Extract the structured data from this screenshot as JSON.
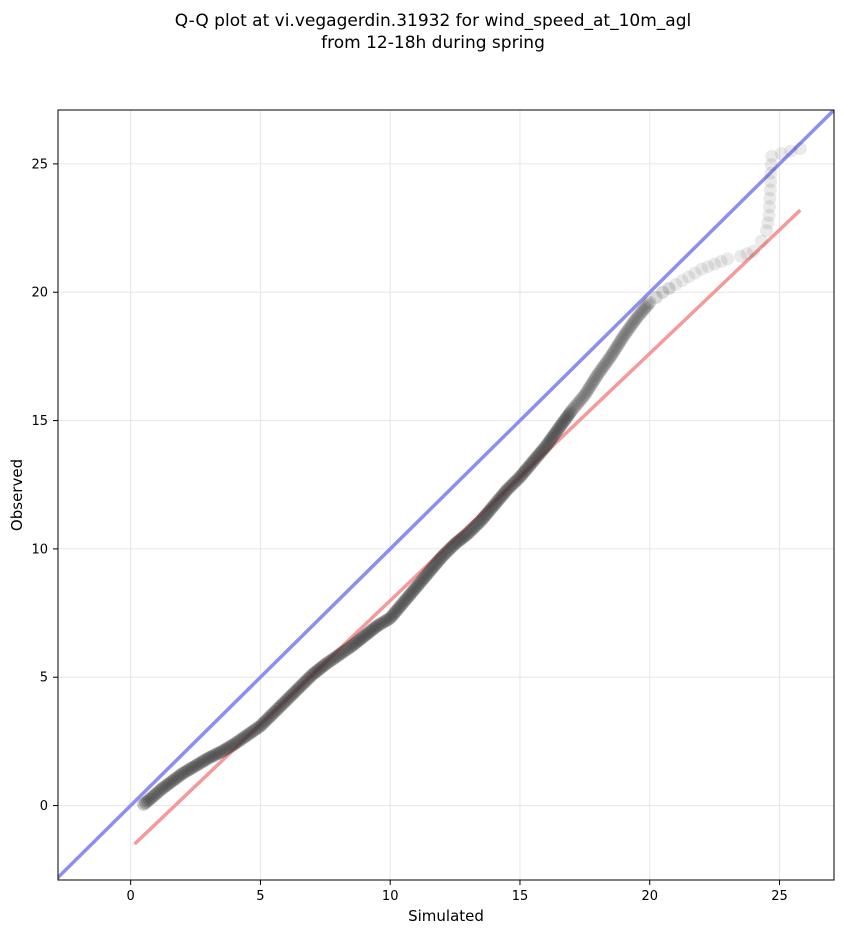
{
  "chart_data": {
    "type": "scatter",
    "title_line1": "Q-Q plot at vi.vegagerdin.31932 for wind_speed_at_10m_agl",
    "title_line2": "from 12-18h during spring",
    "xlabel": "Simulated",
    "ylabel": "Observed",
    "xlim": [
      -2.8,
      27.1
    ],
    "ylim": [
      -2.9,
      27.1
    ],
    "xticks": [
      0,
      5,
      10,
      15,
      20,
      25
    ],
    "yticks": [
      0,
      5,
      10,
      15,
      20,
      25
    ],
    "grid": true,
    "identity_line": {
      "color": "#8a8ff0"
    },
    "fit_line": {
      "x": [
        0.15,
        25.8
      ],
      "y": [
        -1.5,
        23.2
      ],
      "color": "#f59a9a"
    },
    "quantiles": {
      "color": "#333333",
      "x": [
        0.5,
        0.8,
        1.2,
        1.6,
        2.0,
        2.5,
        3.0,
        3.5,
        4.0,
        4.5,
        5.0,
        5.5,
        6.0,
        6.5,
        7.0,
        7.5,
        8.0,
        8.5,
        9.0,
        9.5,
        10.0,
        10.5,
        11.0,
        11.5,
        12.0,
        12.5,
        13.0,
        13.5,
        14.0,
        14.5,
        15.0,
        15.5,
        16.0,
        16.5,
        17.0,
        17.5,
        18.0,
        18.5,
        19.0,
        19.5,
        20.0,
        20.5,
        21.0,
        21.5,
        22.0,
        22.5,
        23.0,
        23.5,
        24.0,
        24.3,
        24.5,
        24.6,
        24.7,
        25.8
      ],
      "y": [
        0.05,
        0.3,
        0.65,
        0.95,
        1.25,
        1.55,
        1.85,
        2.1,
        2.4,
        2.75,
        3.1,
        3.6,
        4.1,
        4.6,
        5.1,
        5.5,
        5.85,
        6.2,
        6.6,
        7.0,
        7.3,
        7.9,
        8.5,
        9.1,
        9.7,
        10.2,
        10.6,
        11.1,
        11.7,
        12.3,
        12.8,
        13.4,
        14.0,
        14.7,
        15.4,
        16.0,
        16.8,
        17.5,
        18.3,
        19.0,
        19.6,
        20.0,
        20.3,
        20.6,
        20.9,
        21.1,
        21.3,
        21.4,
        21.6,
        22.0,
        22.4,
        23.0,
        25.3,
        25.6
      ]
    }
  }
}
